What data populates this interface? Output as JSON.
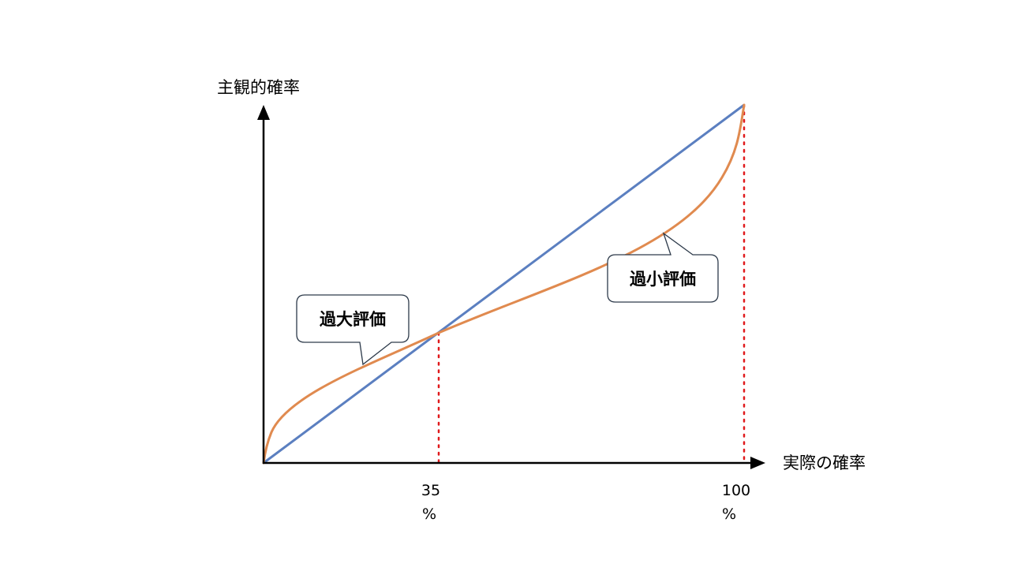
{
  "diagram": {
    "y_axis_label": "主観的確率",
    "x_axis_label": "実際の確率",
    "ticks": [
      {
        "value": "35",
        "unit": "%"
      },
      {
        "value": "100",
        "unit": "%"
      }
    ],
    "callouts": {
      "overestimate": "過大評価",
      "underestimate": "過小評価"
    },
    "colors": {
      "diagonal_line": "#5b7fc0",
      "weighting_curve": "#e08a4f",
      "reference_lines": "#e0191b",
      "axis": "#000000",
      "callout_border": "#2d3a4a"
    }
  }
}
